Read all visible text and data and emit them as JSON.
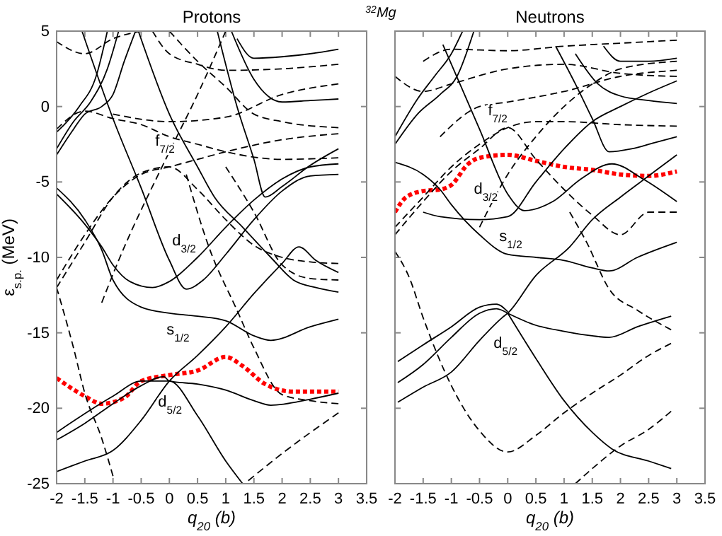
{
  "chart_data": [
    {
      "type": "line",
      "title": "Protons",
      "xlabel": "q$_{20}$ (b)",
      "ylabel": "ε$_{s.p.}$ (MeV)",
      "annotations": [
        "$^{32}$Mg",
        "f$_{7/2}$",
        "d$_{3/2}$",
        "s$_{1/2}$",
        "d$_{5/2}$"
      ],
      "xlim": [
        -2,
        3.5
      ],
      "ylim": [
        -25,
        5
      ],
      "xticks": [
        -2,
        -1.5,
        -1,
        -0.5,
        0,
        0.5,
        1,
        1.5,
        2,
        2.5,
        3,
        3.5
      ],
      "yticks": [
        -25,
        -20,
        -15,
        -10,
        -5,
        0,
        5
      ],
      "grid": false,
      "series": [
        {
          "color": "#ff0000",
          "line_style": "dotted",
          "x": [
            -2,
            -1.5,
            -1.2,
            -0.8,
            -0.5,
            0,
            0.5,
            1,
            1.3,
            1.7,
            2.2,
            3
          ],
          "values": [
            -18,
            -19.2,
            -19.7,
            -19.3,
            -18.2,
            -17.8,
            -17.5,
            -16.6,
            -17.2,
            -18.4,
            -18.9,
            -18.9
          ]
        },
        {
          "color": "#000000",
          "line_style": "solid",
          "x": [
            -2,
            -1.5,
            -1,
            -0.5,
            -0.1,
            0,
            0.5,
            1,
            1.5,
            1.8,
            2.5,
            3
          ],
          "values": [
            -22.1,
            -21,
            -19.7,
            -18.5,
            -17.9,
            -18.2,
            -18.4,
            -18.8,
            -19.5,
            -19.8,
            -19.4,
            -19
          ]
        },
        {
          "color": "#000000",
          "line_style": "solid",
          "x": [
            -2,
            -1,
            -0.5,
            0,
            0.5,
            1,
            1.3
          ],
          "values": [
            -21.6,
            -19.2,
            -18.2,
            -18.2,
            -20.5,
            -23.5,
            -25
          ]
        },
        {
          "color": "#000000",
          "line_style": "solid",
          "x": [
            -2,
            -1.5,
            -1,
            -0.5,
            0,
            0.5,
            1,
            1.5,
            2,
            2.3,
            2.6,
            3
          ],
          "values": [
            -24.2,
            -23.5,
            -22.8,
            -20.8,
            -18.2,
            -16.5,
            -14.6,
            -12.4,
            -10.4,
            -9.3,
            -10.2,
            -11
          ]
        },
        {
          "color": "#000000",
          "line_style": "solid",
          "x": [
            -2,
            -1.5,
            -1.2,
            -1,
            -0.5,
            0,
            0.5,
            1,
            1.5,
            1.8,
            2.5,
            3
          ],
          "values": [
            -5.4,
            -7.5,
            -9.5,
            -11.5,
            -13.3,
            -13.7,
            -13.9,
            -14.2,
            -15.2,
            -15.5,
            -14.6,
            -14.1
          ]
        },
        {
          "color": "#000000",
          "line_style": "solid",
          "x": [
            -2,
            -1.5,
            -1.2,
            -1,
            -0.7,
            -0.3,
            0,
            0.5,
            1,
            1.5,
            2,
            2.5,
            3
          ],
          "values": [
            -5.8,
            -7.8,
            -9.3,
            -10.5,
            -11.6,
            -12,
            -11.6,
            -10,
            -8,
            -6.2,
            -4.8,
            -4,
            -3.8
          ]
        },
        {
          "color": "#000000",
          "line_style": "solid",
          "x": [
            -1.55,
            -1,
            -0.5,
            0,
            0.3,
            0.6,
            1,
            1.5,
            2,
            2.5,
            3
          ],
          "values": [
            5,
            -0.8,
            -5.4,
            -10.2,
            -12.1,
            -11.5,
            -9.8,
            -7.5,
            -5.6,
            -4.6,
            -4.5
          ]
        },
        {
          "color": "#000000",
          "line_style": "solid",
          "x": [
            0.85,
            1.2,
            1.5,
            1.7,
            2,
            2.5,
            3
          ],
          "values": [
            5,
            0,
            -3.5,
            -6,
            -5.3,
            -3.9,
            -2.8
          ]
        },
        {
          "color": "#000000",
          "line_style": "solid",
          "x": [
            -0.55,
            0,
            0.5,
            0.8,
            1.3,
            1.8,
            2.2,
            2.6,
            3
          ],
          "values": [
            5,
            -0.5,
            -4,
            -6,
            -8,
            -10,
            -11.5,
            -12,
            -12.3
          ]
        },
        {
          "color": "#000000",
          "line_style": "solid",
          "x": [
            1.2,
            1.5,
            2,
            2.5,
            3
          ],
          "values": [
            4.5,
            3.2,
            3.3,
            3.5,
            3.8
          ]
        },
        {
          "color": "#000000",
          "line_style": "solid",
          "x": [
            1.1,
            1.5,
            2,
            2.5,
            3
          ],
          "values": [
            5,
            1.8,
            0.3,
            0.4,
            0.5
          ]
        },
        {
          "color": "#000000",
          "line_style": "solid",
          "x": [
            -2,
            -1.7,
            -1.5,
            -1.2,
            -1,
            -0.8,
            -0.6
          ],
          "values": [
            -3.2,
            -1.5,
            -0.5,
            0,
            0.8,
            3,
            5
          ]
        },
        {
          "color": "#000000",
          "line_style": "solid",
          "x": [
            -2,
            -1.7,
            -1.4,
            -1.1,
            -0.9
          ],
          "values": [
            -2.8,
            -1,
            0.3,
            2.5,
            5
          ]
        },
        {
          "color": "#000000",
          "line_style": "solid",
          "x": [
            -2,
            -1.6,
            -1.3,
            -1.1
          ],
          "values": [
            -1.7,
            0,
            2,
            5
          ]
        },
        {
          "color": "#000000",
          "line_style": "dashed",
          "x": [
            -2,
            -1.5,
            -1,
            -0.5,
            0,
            0.5,
            1,
            1.5,
            2,
            2.5,
            3
          ],
          "values": [
            -12,
            -9,
            -6,
            -4.4,
            -4,
            -5.5,
            -7.5,
            -9.2,
            -10,
            -10.3,
            -10.4
          ]
        },
        {
          "color": "#000000",
          "line_style": "dashed",
          "x": [
            -2,
            -1.5,
            -1,
            -0.5,
            0,
            0.5,
            1,
            2,
            3
          ],
          "values": [
            -11.5,
            -8.5,
            -6,
            -4.5,
            -4,
            -3.5,
            -3,
            -2.2,
            -1.8
          ]
        },
        {
          "color": "#000000",
          "line_style": "dashed",
          "x": [
            -1.2,
            -0.9,
            0,
            0.5,
            1
          ],
          "values": [
            -13,
            -10.2,
            -3,
            0.8,
            5
          ]
        },
        {
          "color": "#000000",
          "line_style": "dashed",
          "x": [
            -2,
            -1.7,
            -1.5,
            -1.2,
            -1
          ],
          "values": [
            -12,
            -16,
            -19,
            -22,
            -24.5
          ]
        },
        {
          "color": "#000000",
          "line_style": "dashed",
          "x": [
            0.3,
            0.7,
            1.2,
            1.5,
            2,
            2.5,
            3
          ],
          "values": [
            -4.5,
            -9.3,
            -13.5,
            -16,
            -19.1,
            -19.5,
            -19.7
          ]
        },
        {
          "color": "#000000",
          "line_style": "dashed",
          "x": [
            1.4,
            2,
            3
          ],
          "values": [
            -24.8,
            -23,
            -20.3
          ]
        },
        {
          "color": "#000000",
          "line_style": "dashed",
          "x": [
            1,
            1.5,
            2,
            2.5,
            3
          ],
          "values": [
            -4,
            -7,
            -10.5,
            -11.4,
            -11.5
          ]
        },
        {
          "color": "#000000",
          "line_style": "dashed",
          "x": [
            -2,
            -1.5,
            -1,
            -0.5
          ],
          "values": [
            4.3,
            3.5,
            4.5,
            5
          ]
        },
        {
          "color": "#000000",
          "line_style": "dashed",
          "x": [
            -2,
            -1.5,
            -1,
            -0.5,
            0,
            0.5,
            1,
            2,
            3
          ],
          "values": [
            -1.5,
            -0.3,
            -0.8,
            -1.2,
            -2,
            -2.5,
            -3,
            -3.5,
            -3.4
          ]
        },
        {
          "color": "#000000",
          "line_style": "dashed",
          "x": [
            -0.3,
            0,
            0.5,
            1,
            2,
            3
          ],
          "values": [
            5,
            3.5,
            2.8,
            2.4,
            2.5,
            2.8
          ]
        },
        {
          "color": "#000000",
          "line_style": "dashed",
          "x": [
            0,
            0.5,
            1,
            1.5,
            2,
            3
          ],
          "values": [
            5,
            3,
            1.3,
            -0.5,
            -1,
            -1.4
          ]
        },
        {
          "color": "#000000",
          "line_style": "dashed",
          "x": [
            -1,
            0,
            1,
            2,
            3
          ],
          "values": [
            -0.5,
            -1,
            -0.7,
            0.8,
            1.5
          ]
        }
      ]
    },
    {
      "type": "line",
      "title": "Neutrons",
      "xlabel": "q$_{20}$ (b)",
      "xlim": [
        -2,
        3.5
      ],
      "ylim": [
        -25,
        5
      ],
      "xticks": [
        -2,
        -1.5,
        -1,
        -0.5,
        0,
        0.5,
        1,
        1.5,
        2,
        2.5,
        3,
        3.5
      ],
      "yticks": [
        -25,
        -20,
        -15,
        -10,
        -5,
        0,
        5
      ],
      "tick_labels": "x",
      "grid": false,
      "annotations": [
        "f$_{7/2}$",
        "d$_{3/2}$",
        "s$_{1/2}$",
        "d$_{5/2}$"
      ],
      "series": [
        {
          "color": "#ff0000",
          "line_style": "dotted",
          "x": [
            -2,
            -1.8,
            -1.5,
            -1.2,
            -1,
            -0.7,
            -0.5,
            0,
            0.5,
            1,
            1.5,
            2,
            2.5,
            3
          ],
          "values": [
            -7,
            -6,
            -5.6,
            -5.5,
            -5.2,
            -3.8,
            -3.4,
            -3.2,
            -3.6,
            -4,
            -4.2,
            -4.5,
            -4.6,
            -4.3
          ]
        },
        {
          "color": "#000000",
          "line_style": "solid",
          "x": [
            -2,
            -1.5,
            -1.2,
            -1,
            -0.5,
            0,
            0.5,
            1,
            1.5,
            1.8,
            2.3,
            3
          ],
          "values": [
            -3.7,
            -4.5,
            -5.5,
            -6.5,
            -8.5,
            -9.8,
            -10,
            -10.2,
            -10.7,
            -10.9,
            -10,
            -9
          ]
        },
        {
          "color": "#000000",
          "line_style": "solid",
          "x": [
            -1.15,
            -0.5,
            0,
            0.3,
            0.8,
            1.3,
            1.85,
            2.4,
            3
          ],
          "values": [
            4.1,
            -1.5,
            -5.8,
            -6.9,
            -6.3,
            -4.8,
            -3.8,
            -4.8,
            -6.3
          ]
        },
        {
          "color": "#000000",
          "line_style": "solid",
          "x": [
            -1.5,
            -1.2,
            -0.5,
            0,
            0.5,
            1,
            1.5,
            2,
            2.5,
            3
          ],
          "values": [
            -7,
            -7.3,
            -7.5,
            -7.3,
            -5,
            -2.8,
            -1,
            0,
            0.9,
            1.7
          ]
        },
        {
          "color": "#000000",
          "line_style": "solid",
          "x": [
            0,
            0.5,
            1,
            1.5,
            1.85,
            2.5,
            2.9
          ],
          "values": [
            -13.7,
            -16.7,
            -19.5,
            -21.6,
            -22.7,
            -23.5,
            -24
          ]
        },
        {
          "color": "#000000",
          "line_style": "solid",
          "x": [
            0,
            0.5,
            1,
            1.5,
            1.8,
            2.3,
            2.9
          ],
          "values": [
            -13.7,
            -14.5,
            -14.9,
            -15.2,
            -15.3,
            -14.6,
            -13.9
          ]
        },
        {
          "color": "#000000",
          "line_style": "solid",
          "x": [
            -1.95,
            -1.5,
            -1,
            -0.5,
            -0.1,
            0,
            0.5,
            1.1,
            1.5,
            2,
            2.5,
            3
          ],
          "values": [
            -19.6,
            -18.6,
            -17.6,
            -15.5,
            -14,
            -13.7,
            -11.2,
            -9.3,
            -7.5,
            -6,
            -4.6,
            -3.2
          ]
        },
        {
          "color": "#000000",
          "line_style": "solid",
          "x": [
            -1.95,
            -1.5,
            -1,
            -0.5,
            -0.2,
            0
          ],
          "values": [
            -16.9,
            -15.8,
            -14.6,
            -13.3,
            -13.1,
            -13.6
          ]
        },
        {
          "color": "#000000",
          "line_style": "solid",
          "x": [
            -1.95,
            -1.5,
            -1,
            -0.5,
            -0.2,
            0
          ],
          "values": [
            -18.3,
            -17.1,
            -15.3,
            -13.7,
            -13.4,
            -13.7
          ]
        },
        {
          "color": "#000000",
          "line_style": "solid",
          "x": [
            -2,
            -1.6,
            -1.3,
            -1,
            -0.8
          ],
          "values": [
            -2,
            0.5,
            2,
            3.5,
            5
          ]
        },
        {
          "color": "#000000",
          "line_style": "solid",
          "x": [
            -2,
            -1.6,
            -1.2,
            -0.9,
            -0.6
          ],
          "values": [
            -2.5,
            -0.5,
            0.8,
            2,
            5
          ]
        },
        {
          "color": "#000000",
          "line_style": "solid",
          "x": [
            0.85,
            1.2,
            1.5,
            1.8,
            2.2,
            2.6,
            3
          ],
          "values": [
            4,
            1.5,
            -0.8,
            -3,
            -2.8,
            -2.4,
            -2
          ]
        },
        {
          "color": "#000000",
          "line_style": "solid",
          "x": [
            1.2,
            1.6,
            2,
            2.5,
            3
          ],
          "values": [
            3.5,
            1.5,
            0.7,
            0.4,
            0.2
          ]
        },
        {
          "color": "#000000",
          "line_style": "solid",
          "x": [
            1.7,
            2,
            2.5,
            3
          ],
          "values": [
            4,
            3,
            3,
            3.2
          ]
        },
        {
          "color": "#000000",
          "line_style": "dashed",
          "x": [
            -2,
            -1.75,
            -1.5,
            -1,
            -0.5,
            0,
            0.5,
            1,
            1.5,
            2,
            2.5,
            2.9
          ],
          "values": [
            -9.6,
            -11.3,
            -14,
            -18.5,
            -21.5,
            -22.9,
            -21.8,
            -20.3,
            -19,
            -17.8,
            -16.5,
            -15.7
          ]
        },
        {
          "color": "#000000",
          "line_style": "dashed",
          "x": [
            1.2,
            1.5,
            2,
            2.5,
            2.9
          ],
          "values": [
            -25,
            -24,
            -22.5,
            -21.4,
            -20.2
          ]
        },
        {
          "color": "#000000",
          "line_style": "dashed",
          "x": [
            1.1,
            1.4,
            1.8,
            2.3,
            2.9
          ],
          "values": [
            -7,
            -9,
            -12.1,
            -13.5,
            -14.8
          ]
        },
        {
          "color": "#000000",
          "line_style": "dashed",
          "x": [
            -2,
            -1.5,
            -1,
            -0.5,
            0,
            0.5,
            1,
            2,
            3
          ],
          "values": [
            -8,
            -6,
            -4,
            -2.5,
            -1.4,
            -1,
            -1,
            -1.2,
            -1.3
          ]
        },
        {
          "color": "#000000",
          "line_style": "dashed",
          "x": [
            -2,
            -1.5,
            -1,
            -0.5,
            0,
            0.5,
            1,
            1.5,
            2,
            2.5,
            3
          ],
          "values": [
            -8.5,
            -6.3,
            -4.3,
            -2.8,
            -1.4,
            -3.5,
            -5.5,
            -7.2,
            -8.5,
            -7,
            -7
          ]
        },
        {
          "color": "#000000",
          "line_style": "dashed",
          "x": [
            -0.5,
            0,
            0.5,
            1,
            1.5,
            2,
            3
          ],
          "values": [
            -8,
            -4.5,
            -2,
            0,
            1.5,
            2.5,
            3
          ]
        },
        {
          "color": "#000000",
          "line_style": "dashed",
          "x": [
            -1.2,
            -0.5,
            0,
            1,
            2,
            3
          ],
          "values": [
            -2,
            0,
            0.3,
            1,
            2,
            2.4
          ]
        },
        {
          "color": "#000000",
          "line_style": "dashed",
          "x": [
            -1.5,
            -1,
            0,
            1,
            2,
            3
          ],
          "values": [
            3,
            3.8,
            3.7,
            4,
            4.2,
            4.4
          ]
        },
        {
          "color": "#000000",
          "line_style": "dashed",
          "x": [
            -2,
            -1.5,
            -1,
            0,
            1,
            2,
            3
          ],
          "values": [
            2,
            1,
            1.5,
            2.5,
            2.8,
            2.2,
            2
          ]
        }
      ]
    }
  ]
}
